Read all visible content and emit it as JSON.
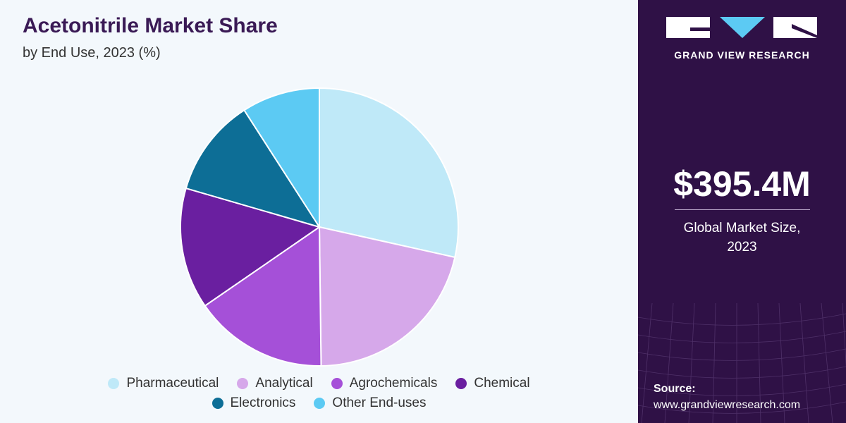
{
  "header": {
    "title": "Acetonitrile Market Share",
    "subtitle": "by End Use, 2023 (%)"
  },
  "chart_data": {
    "type": "pie",
    "title": "Acetonitrile Market Share",
    "subtitle": "by End Use, 2023 (%)",
    "categories": [
      "Pharmaceutical",
      "Analytical",
      "Agrochemicals",
      "Chemical",
      "Electronics",
      "Other End-uses"
    ],
    "values": [
      28.5,
      21.3,
      15.6,
      14.1,
      11.4,
      9.1
    ],
    "colors": [
      "#bfe9f8",
      "#d6a8ea",
      "#a550d8",
      "#6a1fa0",
      "#0d6e96",
      "#5ccaf3"
    ],
    "legend_position": "bottom"
  },
  "legend": {
    "items": [
      {
        "label": "Pharmaceutical",
        "color": "#bfe9f8"
      },
      {
        "label": "Analytical",
        "color": "#d6a8ea"
      },
      {
        "label": "Agrochemicals",
        "color": "#a550d8"
      },
      {
        "label": "Chemical",
        "color": "#6a1fa0"
      },
      {
        "label": "Electronics",
        "color": "#0d6e96"
      },
      {
        "label": "Other End-uses",
        "color": "#5ccaf3"
      }
    ]
  },
  "sidebar": {
    "logo_text": "GRAND VIEW RESEARCH",
    "logo_icon": "gvr-logo-icon",
    "market_value": "$395.4M",
    "market_label_line1": "Global Market Size,",
    "market_label_line2": "2023",
    "source_label": "Source:",
    "source_url": "www.grandviewresearch.com"
  },
  "colors": {
    "sidebar_bg": "#2f1146",
    "title_color": "#3a1a55",
    "panel_bg": "#f3f8fc"
  }
}
